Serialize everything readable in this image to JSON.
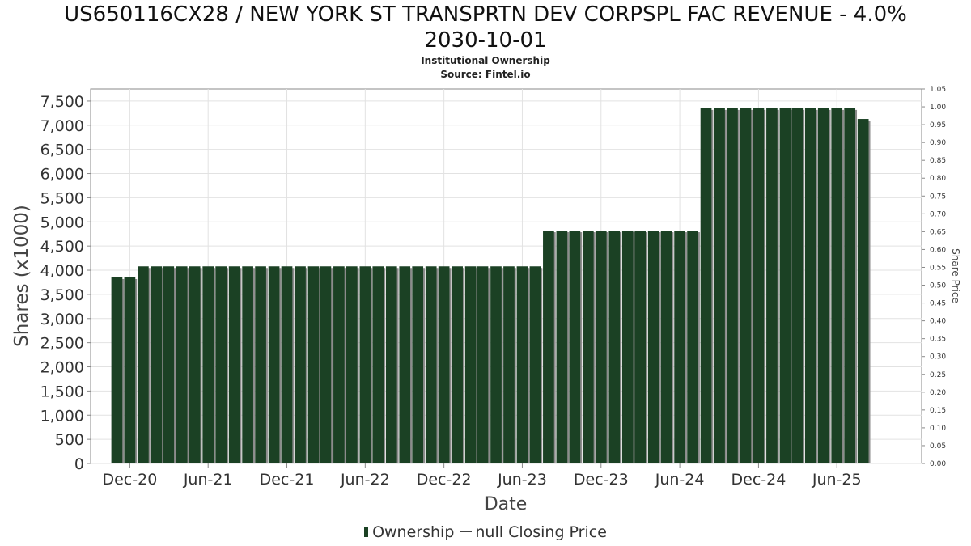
{
  "title_line1": "US650116CX28 / NEW YORK ST TRANSPRTN DEV CORPSPL FAC REVENUE - 4.0%",
  "title_line2": "2030-10-01",
  "subtitle_line1": "Institutional Ownership",
  "subtitle_line2": "Source: Fintel.io",
  "legend": {
    "ownership": "Ownership",
    "price": "null Closing Price"
  },
  "colors": {
    "bar": "#1b4124",
    "bar_shadow": "#8c8c8c",
    "grid": "#e2e2e2",
    "axis": "#888888"
  },
  "chart_data": {
    "type": "bar",
    "xlabel": "Date",
    "ylabel": "Shares (x1000)",
    "y2label": "Share Price",
    "ylim": [
      0,
      7750
    ],
    "y2lim": [
      0,
      1.05
    ],
    "yticks": [
      0,
      500,
      1000,
      1500,
      2000,
      2500,
      3000,
      3500,
      4000,
      4500,
      5000,
      5500,
      6000,
      6500,
      7000,
      7500
    ],
    "ytick_labels": [
      "0",
      "500",
      "1,000",
      "1,500",
      "2,000",
      "2,500",
      "3,000",
      "3,500",
      "4,000",
      "4,500",
      "5,000",
      "5,500",
      "6,000",
      "6,500",
      "7,000",
      "7,500"
    ],
    "y2ticks": [
      "0.00",
      "0.05",
      "0.10",
      "0.15",
      "0.20",
      "0.25",
      "0.30",
      "0.35",
      "0.40",
      "0.45",
      "0.50",
      "0.55",
      "0.60",
      "0.65",
      "0.70",
      "0.75",
      "0.80",
      "0.85",
      "0.90",
      "0.95",
      "1.00",
      "1.05"
    ],
    "x_range": [
      "2020-09-01",
      "2025-12-15"
    ],
    "xtick_dates": [
      "2020-12-01",
      "2021-06-01",
      "2021-12-01",
      "2022-06-01",
      "2022-12-01",
      "2023-06-01",
      "2023-12-01",
      "2024-06-01",
      "2024-12-01",
      "2025-06-01"
    ],
    "xtick_labels": [
      "Dec-20",
      "Jun-21",
      "Dec-21",
      "Jun-22",
      "Dec-22",
      "Jun-23",
      "Dec-23",
      "Jun-24",
      "Dec-24",
      "Jun-25"
    ],
    "grid": true,
    "legend_position": "bottom",
    "series": [
      {
        "name": "Ownership",
        "dates": [
          "2020-11-01",
          "2020-12-01",
          "2021-01-01",
          "2021-02-01",
          "2021-03-01",
          "2021-04-01",
          "2021-05-01",
          "2021-06-01",
          "2021-07-01",
          "2021-08-01",
          "2021-09-01",
          "2021-10-01",
          "2021-11-01",
          "2021-12-01",
          "2022-01-01",
          "2022-02-01",
          "2022-03-01",
          "2022-04-01",
          "2022-05-01",
          "2022-06-01",
          "2022-07-01",
          "2022-08-01",
          "2022-09-01",
          "2022-10-01",
          "2022-11-01",
          "2022-12-01",
          "2023-01-01",
          "2023-02-01",
          "2023-03-01",
          "2023-04-01",
          "2023-05-01",
          "2023-06-01",
          "2023-07-01",
          "2023-08-01",
          "2023-09-01",
          "2023-10-01",
          "2023-11-01",
          "2023-12-01",
          "2024-01-01",
          "2024-02-01",
          "2024-03-01",
          "2024-04-01",
          "2024-05-01",
          "2024-06-01",
          "2024-07-01",
          "2024-08-01",
          "2024-09-01",
          "2024-10-01",
          "2024-11-01",
          "2024-12-01",
          "2025-01-01",
          "2025-02-01",
          "2025-03-01",
          "2025-04-01",
          "2025-05-01",
          "2025-06-01",
          "2025-07-01",
          "2025-08-01"
        ],
        "values": [
          3850,
          3850,
          4080,
          4080,
          4080,
          4080,
          4080,
          4080,
          4080,
          4080,
          4080,
          4080,
          4080,
          4080,
          4080,
          4080,
          4080,
          4080,
          4080,
          4080,
          4080,
          4080,
          4080,
          4080,
          4080,
          4080,
          4080,
          4080,
          4080,
          4080,
          4080,
          4080,
          4080,
          4820,
          4820,
          4820,
          4820,
          4820,
          4820,
          4820,
          4820,
          4820,
          4820,
          4820,
          4820,
          7350,
          7350,
          7350,
          7350,
          7350,
          7350,
          7350,
          7350,
          7350,
          7350,
          7350,
          7350,
          7130
        ]
      }
    ]
  }
}
